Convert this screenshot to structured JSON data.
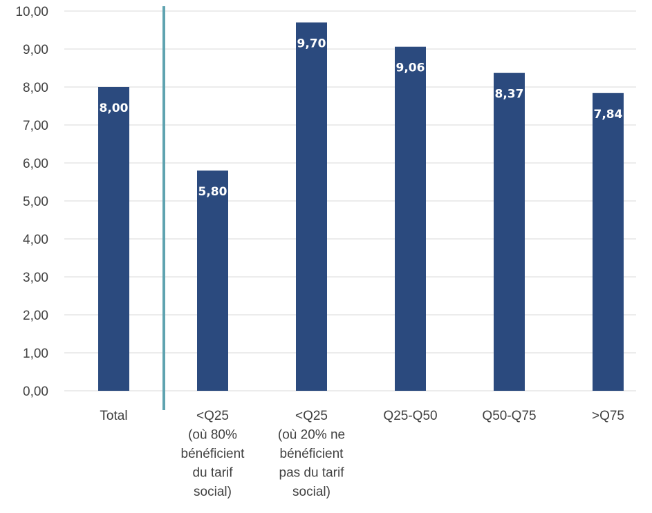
{
  "chart_data": {
    "type": "bar",
    "categories": [
      [
        "Total"
      ],
      [
        "<Q25",
        "(où 80%",
        "bénéficient",
        "du tarif",
        "social)"
      ],
      [
        "<Q25",
        "(où 20% ne",
        "bénéficient",
        "pas du tarif",
        "social)"
      ],
      [
        "Q25-Q50"
      ],
      [
        "Q50-Q75"
      ],
      [
        ">Q75"
      ]
    ],
    "values": [
      8.0,
      5.8,
      9.7,
      9.06,
      8.37,
      7.84
    ],
    "value_labels": [
      "8,00",
      "5,80",
      "9,70",
      "9,06",
      "8,37",
      "7,84"
    ],
    "y_ticks": [
      "0,00",
      "1,00",
      "2,00",
      "3,00",
      "4,00",
      "5,00",
      "6,00",
      "7,00",
      "8,00",
      "9,00",
      "10,00"
    ],
    "ylim": [
      0,
      10
    ],
    "grid": true,
    "separator_after_category": 0,
    "colors": {
      "bar": "#2b4a7e",
      "separator": "#5fa3b0",
      "grid": "#d9d9d9"
    }
  }
}
